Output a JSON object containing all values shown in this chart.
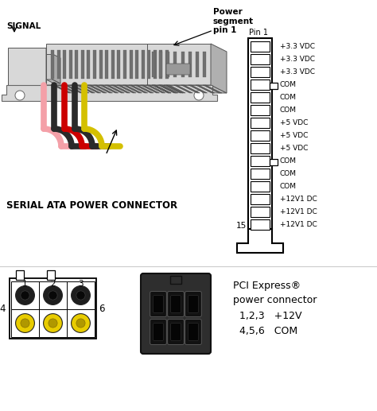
{
  "bg_color": "#ffffff",
  "signal_label": "SIGNAL",
  "serial_ata_label": "SERIAL ATA POWER CONNECTOR",
  "pin_labels": [
    "+3.3 VDC",
    "+3.3 VDC",
    "+3.3 VDC",
    "COM",
    "COM",
    "COM",
    "+5 VDC",
    "+5 VDC",
    "+5 VDC",
    "COM",
    "COM",
    "COM",
    "+12V1 DC",
    "+12V1 DC",
    "+12V1 DC"
  ],
  "pin1_label": "Pin 1",
  "pin15_label": "15",
  "power_seg_label": "Power\nsegment\npin 1",
  "pci_title": "PCI Express®",
  "pci_sub1": "power connector",
  "pci_sub2": "1,2,3   +12V",
  "pci_sub3": "4,5,6   COM",
  "wire_colors": [
    "#f4a0a8",
    "#2a2a2a",
    "#cc0000",
    "#2a2a2a",
    "#d4c000"
  ],
  "yellow_color": "#e8cc00",
  "dark_connector_color": "#3a3a3a",
  "connector_gray": "#d8d8d8",
  "connector_gray2": "#c0c0c0",
  "connector_gray3": "#b0b0b0"
}
